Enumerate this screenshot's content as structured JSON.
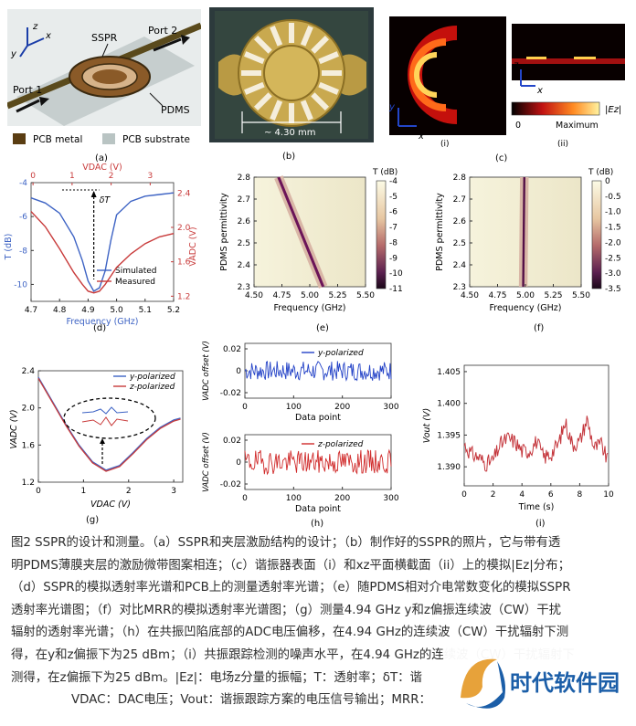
{
  "panel_labels": {
    "a": "(a)",
    "b": "(b)",
    "c": "(c)",
    "ci": "(i)",
    "cii": "(ii)",
    "d": "(d)",
    "e": "(e)",
    "f": "(f)",
    "g": "(g)",
    "h": "(h)",
    "i": "(i)"
  },
  "panel_a": {
    "sspr": "SSPR",
    "port1": "Port 1",
    "port2": "Port 2",
    "pdms": "PDMS",
    "legend_metal": "PCB metal",
    "legend_substrate": "PCB substrate",
    "axis_z": "z",
    "axis_y": "y",
    "axis_x": "x",
    "metal_color": "#5a3d12",
    "substrate_color": "#b9c4c3"
  },
  "panel_b": {
    "scale": "~ 4.30 mm"
  },
  "panel_c": {
    "axis_y": "y",
    "axis_x": "x",
    "axis_z": "z",
    "colorbar_label": "|Ez|",
    "colorbar_min": "0",
    "colorbar_max": "Maximum"
  },
  "colorbar_ticks_e": [
    "-4",
    "-5",
    "-6",
    "-7",
    "-8",
    "-9",
    "-10",
    "-11"
  ],
  "colorbar_ticks_f": [
    "0",
    "-0.5",
    "-1.0",
    "-1.5",
    "-2.0",
    "-2.5",
    "-3.0",
    "-3.5"
  ],
  "chart_data": [
    {
      "panel": "d",
      "type": "line",
      "xlabel": "Frequency (GHz)",
      "ylabel": "T (dB)",
      "x2label": "VDAC (V)",
      "y2label": "VADC (V)",
      "xlim": [
        4.7,
        5.2
      ],
      "x_ticks": [
        "4.7",
        "4.8",
        "4.9",
        "5.0",
        "5.1",
        "5.2"
      ],
      "ylim": [
        -11,
        -4
      ],
      "y_ticks": [
        "-4",
        "-6",
        "-8",
        "-10"
      ],
      "x2_ticks": [
        "0",
        "1",
        "2",
        "3"
      ],
      "y2_ticks": [
        "2.4",
        "2.0",
        "1.6",
        "1.2"
      ],
      "annotation": "δT",
      "series": [
        {
          "name": "Simulated",
          "color": "#3d63c4",
          "x": [
            4.7,
            4.75,
            4.8,
            4.85,
            4.88,
            4.9,
            4.92,
            4.94,
            4.96,
            4.98,
            5.0,
            5.05,
            5.1,
            5.15,
            5.2
          ],
          "y": [
            -4.9,
            -5.2,
            -5.8,
            -7.2,
            -8.6,
            -9.8,
            -10.4,
            -10.2,
            -9.2,
            -7.4,
            -5.9,
            -5.1,
            -4.8,
            -4.7,
            -4.6
          ]
        },
        {
          "name": "Measured",
          "color": "#c83a3a",
          "x": [
            4.7,
            4.75,
            4.8,
            4.85,
            4.88,
            4.9,
            4.92,
            4.94,
            4.96,
            4.98,
            5.0,
            5.05,
            5.1,
            5.15,
            5.2
          ],
          "y": [
            -5.7,
            -6.6,
            -7.9,
            -9.3,
            -10.0,
            -10.4,
            -10.5,
            -10.4,
            -10.0,
            -9.5,
            -9.0,
            -8.2,
            -7.6,
            -7.2,
            -7.0
          ]
        }
      ]
    },
    {
      "panel": "e",
      "type": "heatmap",
      "xlabel": "Frequency (GHz)",
      "ylabel": "PDMS permittivity",
      "colorbar_title": "T (dB)",
      "xlim": [
        4.5,
        5.5
      ],
      "x_ticks": [
        "4.50",
        "4.75",
        "5.00",
        "5.25",
        "5.50"
      ],
      "ylim": [
        2.3,
        2.8
      ],
      "y_ticks": [
        "2.8",
        "2.7",
        "2.6",
        "2.5",
        "2.4",
        "2.3"
      ],
      "resonance": {
        "x": [
          4.72,
          5.12
        ],
        "y": [
          2.8,
          2.3
        ]
      }
    },
    {
      "panel": "f",
      "type": "heatmap",
      "xlabel": "Frequency (GHz)",
      "ylabel": "PDMS permittivity",
      "colorbar_title": "T (dB)",
      "xlim": [
        4.5,
        5.5
      ],
      "x_ticks": [
        "4.50",
        "4.75",
        "5.00",
        "5.25",
        "5.50"
      ],
      "ylim": [
        2.3,
        2.8
      ],
      "y_ticks": [
        "2.8",
        "2.7",
        "2.6",
        "2.5",
        "2.4",
        "2.3"
      ],
      "resonance": {
        "x": [
          4.99,
          4.98
        ],
        "y": [
          2.8,
          2.3
        ]
      }
    },
    {
      "panel": "g",
      "type": "line",
      "xlabel": "VDAC (V)",
      "ylabel": "VADC (V)",
      "xlim": [
        0,
        3.2
      ],
      "x_ticks": [
        "0",
        "1",
        "2",
        "3"
      ],
      "ylim": [
        1.2,
        2.4
      ],
      "y_ticks": [
        "2.4",
        "2.0",
        "1.6",
        "1.2"
      ],
      "series": [
        {
          "name": "y-polarized",
          "color": "#3d63c4",
          "x": [
            0,
            0.3,
            0.6,
            0.9,
            1.2,
            1.5,
            1.8,
            2.1,
            2.4,
            2.7,
            3.0,
            3.15
          ],
          "y": [
            2.33,
            2.08,
            1.83,
            1.6,
            1.42,
            1.33,
            1.38,
            1.52,
            1.67,
            1.79,
            1.87,
            1.89
          ]
        },
        {
          "name": "z-polarized",
          "color": "#c83a3a",
          "x": [
            0,
            0.3,
            0.6,
            0.9,
            1.2,
            1.5,
            1.8,
            2.1,
            2.4,
            2.7,
            3.0,
            3.15
          ],
          "y": [
            2.33,
            2.08,
            1.83,
            1.6,
            1.42,
            1.33,
            1.38,
            1.52,
            1.67,
            1.79,
            1.87,
            1.89
          ]
        }
      ]
    },
    {
      "panel": "h-top",
      "type": "line",
      "xlabel": "Data point",
      "ylabel": "VADC offset (V)",
      "xlim": [
        0,
        300
      ],
      "x_ticks": [
        "0",
        "100",
        "200",
        "300"
      ],
      "ylim": [
        -0.025,
        0.025
      ],
      "y_ticks": [
        "0.02",
        "0",
        "-0.02"
      ],
      "series": [
        {
          "name": "y-polarized",
          "color": "#2342c7",
          "amplitude": 0.009,
          "seed": 7
        }
      ]
    },
    {
      "panel": "h-bottom",
      "type": "line",
      "xlabel": "Data point",
      "ylabel": "VADC offset (V)",
      "xlim": [
        0,
        300
      ],
      "x_ticks": [
        "0",
        "100",
        "200",
        "300"
      ],
      "ylim": [
        -0.025,
        0.025
      ],
      "y_ticks": [
        "0.02",
        "0",
        "-0.02"
      ],
      "series": [
        {
          "name": "z-polarized",
          "color": "#d02a2a",
          "amplitude": 0.011,
          "seed": 19
        }
      ]
    },
    {
      "panel": "i",
      "type": "line",
      "xlabel": "Time (s)",
      "ylabel": "Vout (V)",
      "xlim": [
        0,
        10
      ],
      "x_ticks": [
        "0",
        "2",
        "4",
        "6",
        "8",
        "10"
      ],
      "ylim": [
        1.387,
        1.406
      ],
      "y_ticks": [
        "1.405",
        "1.400",
        "1.395",
        "1.390"
      ],
      "series": [
        {
          "color": "#c4363c",
          "x": [
            0,
            0.5,
            1,
            1.5,
            2,
            2.5,
            3,
            3.5,
            4,
            4.5,
            5,
            5.5,
            6,
            6.5,
            7,
            7.5,
            8,
            8.5,
            9,
            9.5,
            10
          ],
          "y": [
            1.3935,
            1.392,
            1.3915,
            1.3905,
            1.391,
            1.3935,
            1.3945,
            1.394,
            1.3925,
            1.3925,
            1.394,
            1.3915,
            1.392,
            1.3935,
            1.397,
            1.3935,
            1.394,
            1.3975,
            1.393,
            1.3935,
            1.3905
          ]
        }
      ]
    }
  ],
  "caption": {
    "lines": [
      "图2 SSPR的设计和测量。（a）SSPR和夹层激励结构的设计；（b）制作好的SSPR的照片，它与带有透",
      "明PDMS薄膜夹层的激励微带图案相连；（c）谐振器表面（i）和xz平面横截面（ii）上的模拟|Ez|分布；",
      "（d）SSPR的模拟透射率光谱和PCB上的测量透射率光谱；（e）随PDMS相对介电常数变化的模拟SSPR",
      "透射率光谱图；（f）对比MRR的模拟透射率光谱图；（g）测量4.94 GHz y和z偏振连续波（CW）干扰",
      "辐射的透射率光谱；（h）在共振凹陷底部的ADC电压偏移，在4.94 GHz的连续波（CW）干扰辐射下测",
      "得，在y和z偏振下为25 dBm；（i）共振跟踪检测的噪声水平，在4.94 GHz的连续波（CW）干扰辐射下",
      "测得，在z偏振下为25 dBm。|Ez|：电场z分量的振幅；T：透射率；δT：谐",
      "VDAC：DAC电压；Vout：谐振跟踪方案的电压信号输出；MRR："
    ]
  },
  "watermark": {
    "text": "时代软件园",
    "color": "#1b5ea8",
    "accent": "#e7a23a"
  }
}
